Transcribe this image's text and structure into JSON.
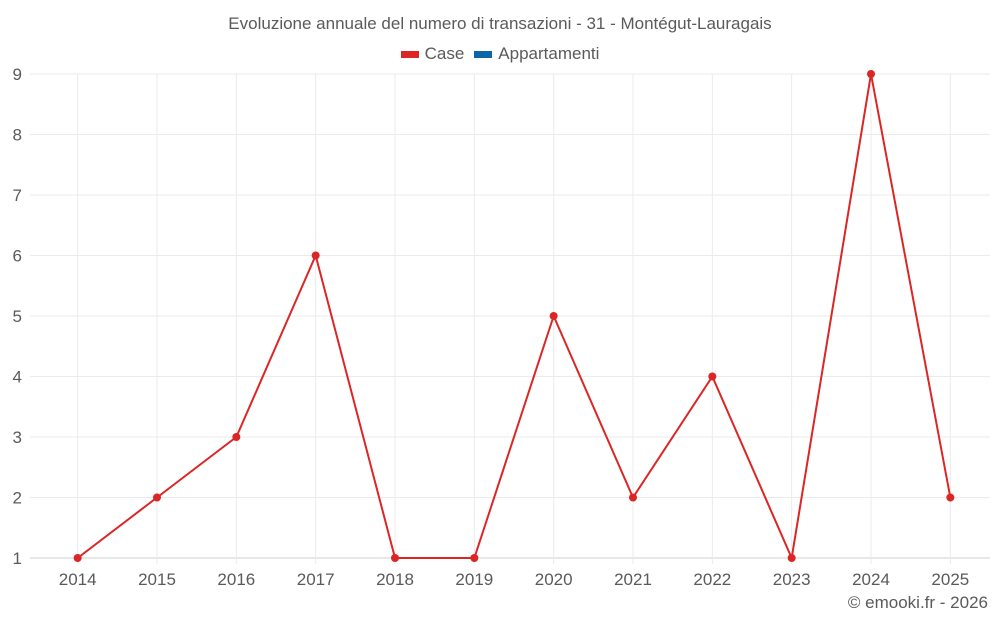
{
  "chart_data": {
    "type": "line",
    "title": "Evoluzione annuale del numero di transazioni - 31 - Montégut-Lauragais",
    "xlabel": "",
    "ylabel": "",
    "categories": [
      "2014",
      "2015",
      "2016",
      "2017",
      "2018",
      "2019",
      "2020",
      "2021",
      "2022",
      "2023",
      "2024",
      "2025"
    ],
    "series": [
      {
        "name": "Case",
        "color": "#dc2626",
        "values": [
          1,
          2,
          3,
          6,
          1,
          1,
          5,
          2,
          4,
          1,
          9,
          2
        ]
      },
      {
        "name": "Appartamenti",
        "color": "#0a66a8",
        "values": []
      }
    ],
    "ylim": [
      1,
      9
    ],
    "yticks": [
      1,
      2,
      3,
      4,
      5,
      6,
      7,
      8,
      9
    ],
    "grid": true,
    "legend_position": "top"
  },
  "legend": [
    {
      "label": "Case",
      "color": "#dc2626"
    },
    {
      "label": "Appartamenti",
      "color": "#0a66a8"
    }
  ],
  "credit": "© emooki.fr - 2026"
}
